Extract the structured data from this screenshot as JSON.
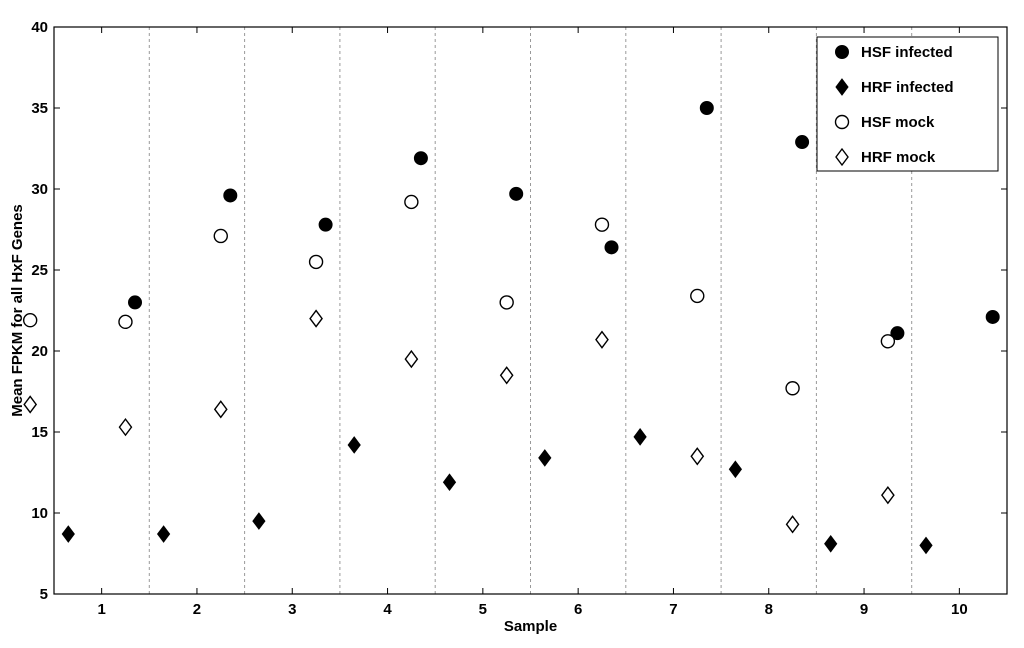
{
  "chart_data": {
    "type": "scatter",
    "title": "",
    "xlabel": "Sample",
    "ylabel": "Mean FPKM for all HxF Genes",
    "x_categories": [
      "1",
      "2",
      "3",
      "4",
      "5",
      "6",
      "7",
      "8",
      "9",
      "10"
    ],
    "ylim": [
      5,
      40
    ],
    "yticks": [
      5,
      10,
      15,
      20,
      25,
      30,
      35,
      40
    ],
    "grid": "vertical dashed separators between samples",
    "legend_position": "top-right",
    "series": [
      {
        "name": "HSF infected",
        "marker": "filled-circle",
        "values": [
          23.0,
          29.6,
          27.8,
          31.9,
          29.7,
          26.4,
          35.0,
          32.9,
          21.1,
          22.1
        ]
      },
      {
        "name": "HRF infected",
        "marker": "filled-diamond",
        "values": [
          8.7,
          8.7,
          9.5,
          14.2,
          11.9,
          13.4,
          14.7,
          12.7,
          8.1,
          8.0
        ]
      },
      {
        "name": "HSF mock",
        "marker": "open-circle",
        "values": [
          21.9,
          21.8,
          27.1,
          25.5,
          29.2,
          23.0,
          27.8,
          23.4,
          17.7,
          20.6
        ]
      },
      {
        "name": "HRF mock",
        "marker": "open-diamond",
        "values": [
          16.7,
          15.3,
          16.4,
          22.0,
          19.5,
          18.5,
          20.7,
          13.5,
          9.3,
          11.1
        ]
      }
    ]
  }
}
